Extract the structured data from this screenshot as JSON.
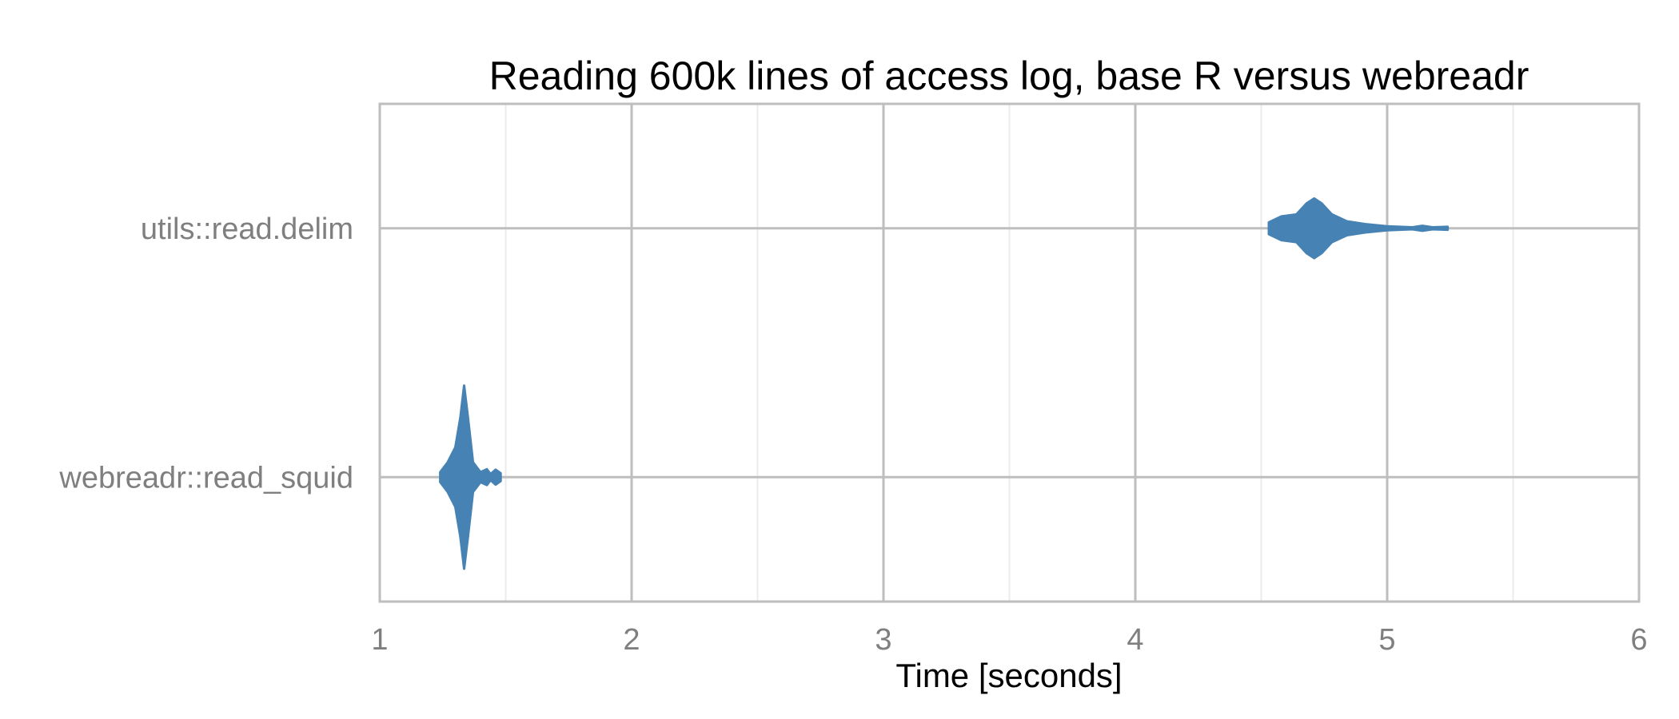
{
  "chart_data": {
    "type": "violin",
    "title": "Reading 600k lines of access log, base R versus webreadr",
    "xlabel": "Time [seconds]",
    "ylabel": "",
    "xlim": [
      1,
      6
    ],
    "x_ticks": [
      "1",
      "2",
      "3",
      "4",
      "5",
      "6"
    ],
    "categories": [
      "utils::read.delim",
      "webreadr::read_squid"
    ],
    "orientation": "horizontal",
    "grid": true,
    "fill_color": "#4682b4",
    "series": [
      {
        "category": "utils::read.delim",
        "density_profile": [
          [
            4.53,
            0.06
          ],
          [
            4.58,
            0.12
          ],
          [
            4.64,
            0.14
          ],
          [
            4.68,
            0.25
          ],
          [
            4.71,
            0.3
          ],
          [
            4.74,
            0.25
          ],
          [
            4.78,
            0.14
          ],
          [
            4.84,
            0.07
          ],
          [
            4.92,
            0.04
          ],
          [
            5.0,
            0.02
          ],
          [
            5.1,
            0.01
          ],
          [
            5.14,
            0.025
          ],
          [
            5.18,
            0.01
          ],
          [
            5.24,
            0.015
          ]
        ]
      },
      {
        "category": "webreadr::read_squid",
        "density_profile": [
          [
            1.24,
            0.05
          ],
          [
            1.27,
            0.15
          ],
          [
            1.3,
            0.3
          ],
          [
            1.32,
            0.6
          ],
          [
            1.335,
            0.92
          ],
          [
            1.35,
            0.6
          ],
          [
            1.37,
            0.15
          ],
          [
            1.4,
            0.05
          ],
          [
            1.425,
            0.08
          ],
          [
            1.44,
            0.03
          ],
          [
            1.46,
            0.075
          ],
          [
            1.48,
            0.04
          ]
        ]
      }
    ]
  }
}
